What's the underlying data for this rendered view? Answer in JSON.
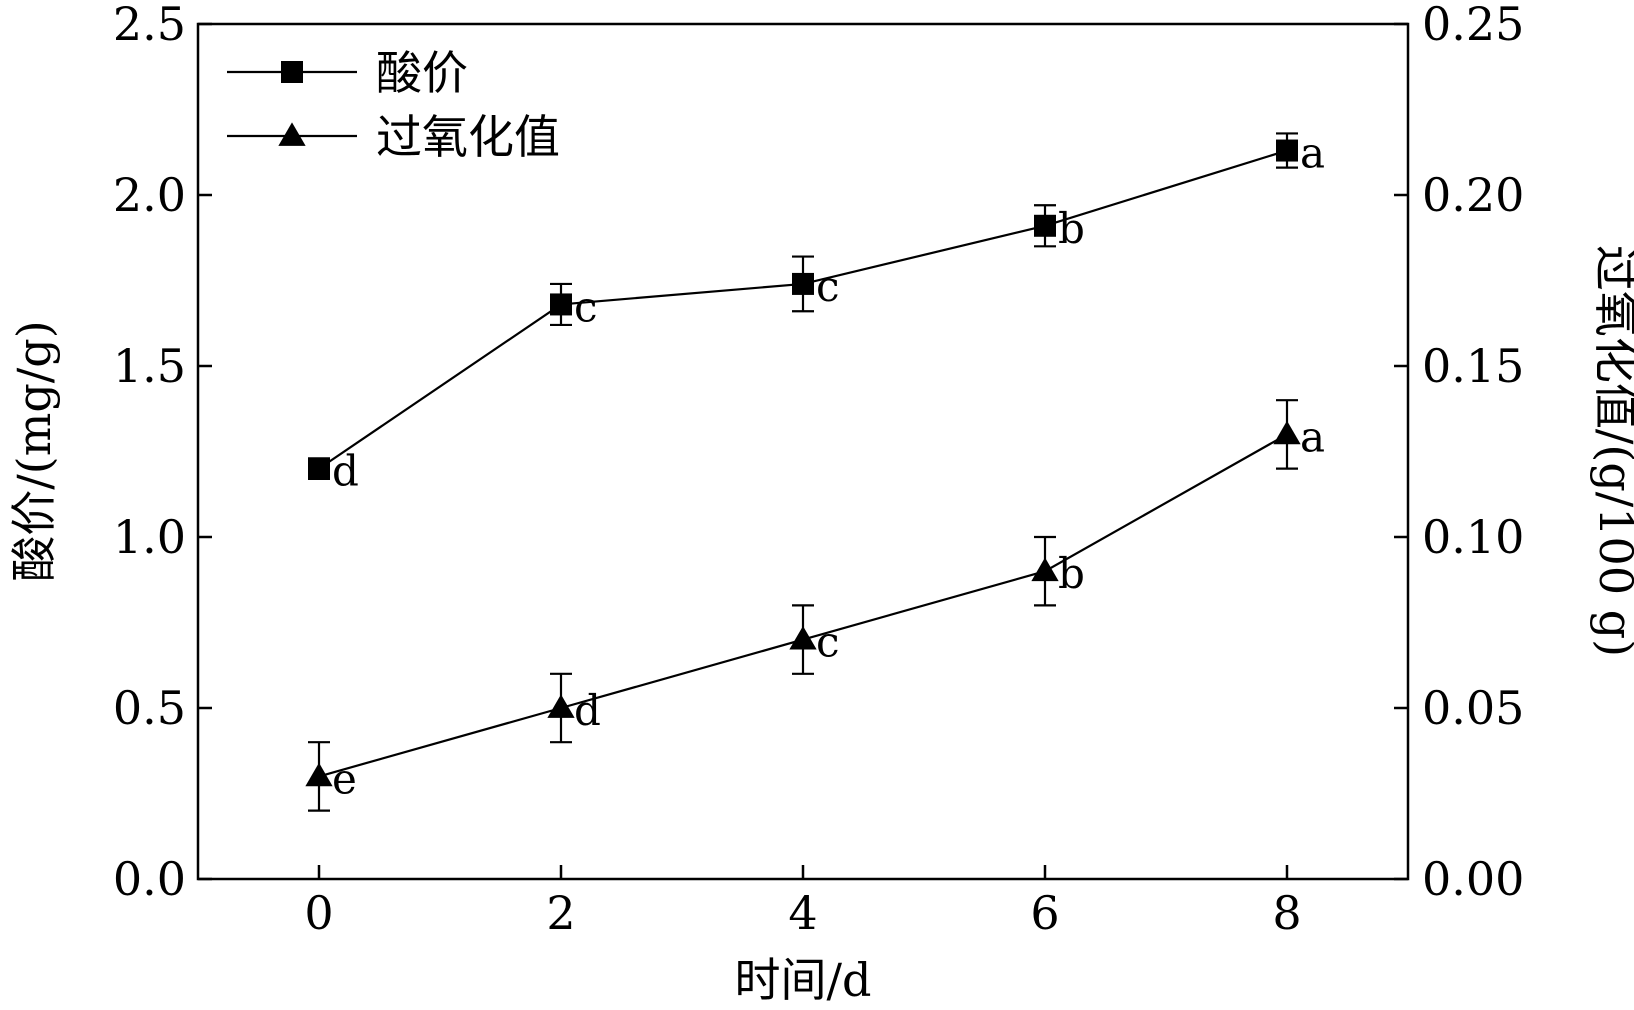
{
  "chart_data": {
    "type": "line",
    "xlabel": "时间/d",
    "ylabel_left": "酸价/(mg/g)",
    "ylabel_right": "过氧化值/(g/100 g)",
    "x": [
      0,
      2,
      4,
      6,
      8
    ],
    "xlim": [
      -1,
      9
    ],
    "x_ticks": [
      "0",
      "2",
      "4",
      "6",
      "8"
    ],
    "ylim_left": [
      0,
      2.5
    ],
    "y_ticks_left": [
      "0.0",
      "0.5",
      "1.0",
      "1.5",
      "2.0",
      "2.5"
    ],
    "ylim_right": [
      0,
      0.25
    ],
    "y_ticks_right": [
      "0.00",
      "0.05",
      "0.10",
      "0.15",
      "0.20",
      "0.25"
    ],
    "grid": false,
    "legend_position": "top-left",
    "series": [
      {
        "name": "酸价",
        "axis": "left",
        "marker": "square",
        "values": [
          1.2,
          1.68,
          1.74,
          1.91,
          2.13
        ],
        "errors": [
          0.03,
          0.06,
          0.08,
          0.06,
          0.05
        ],
        "labels": [
          "d",
          "c",
          "c",
          "b",
          "a"
        ]
      },
      {
        "name": "过氧化值",
        "axis": "right",
        "marker": "triangle",
        "values": [
          0.03,
          0.05,
          0.07,
          0.09,
          0.13
        ],
        "errors": [
          0.01,
          0.01,
          0.01,
          0.01,
          0.01
        ],
        "labels": [
          "e",
          "d",
          "c",
          "b",
          "a"
        ]
      }
    ]
  }
}
